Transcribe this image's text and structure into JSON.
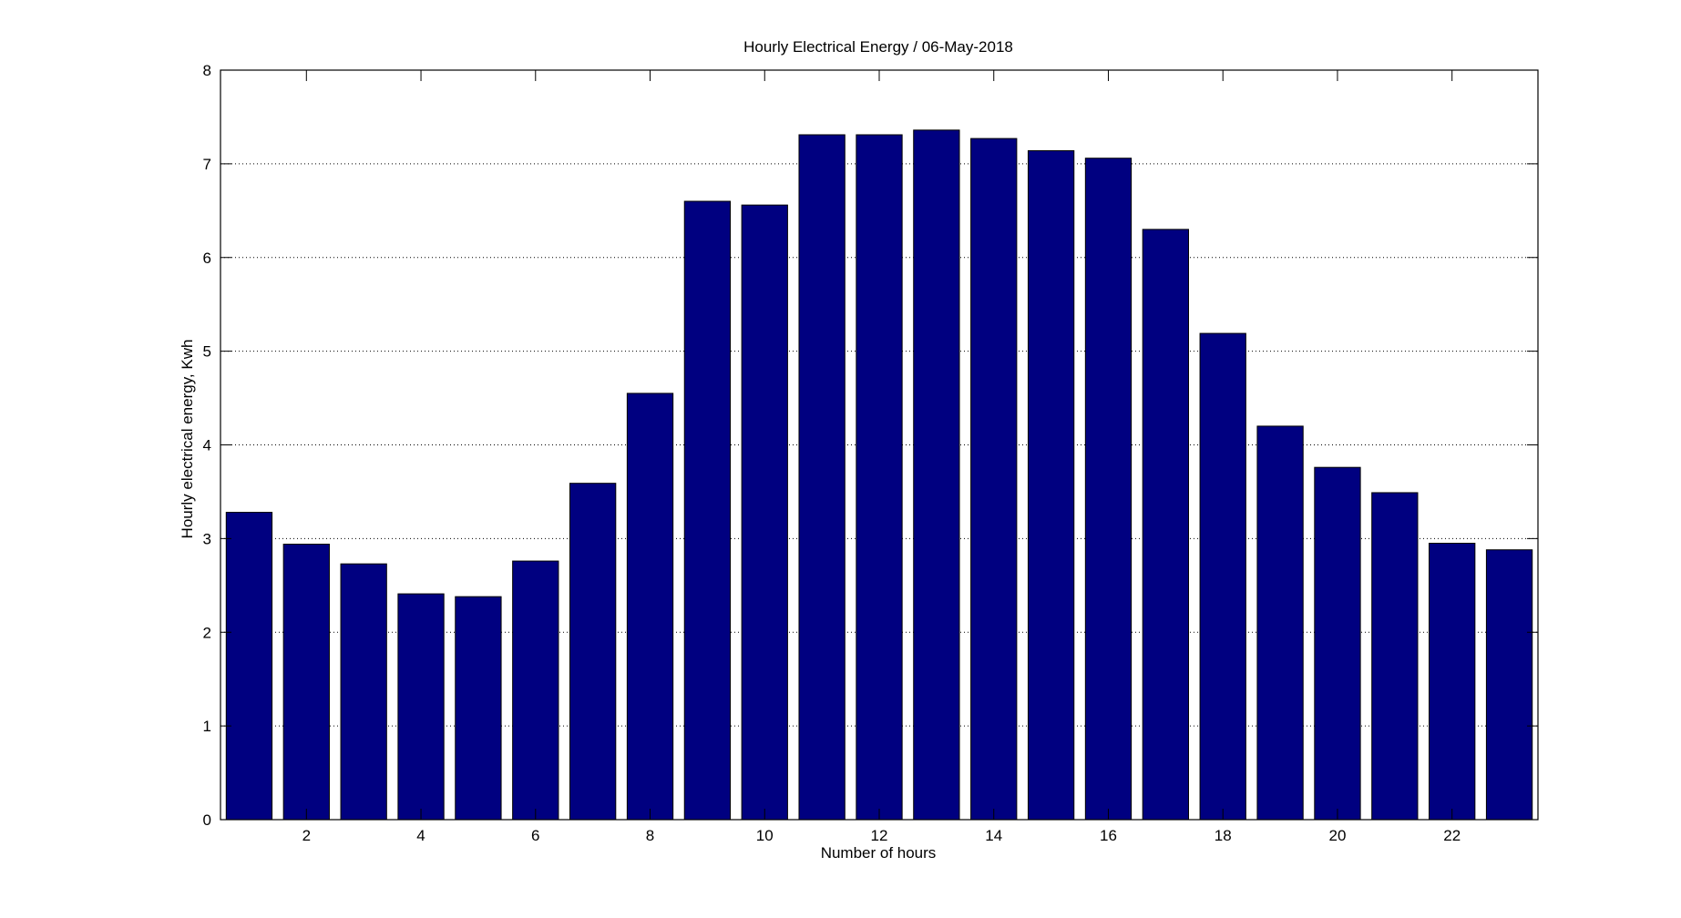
{
  "chart_data": {
    "type": "bar",
    "title": "Hourly Electrical Energy / 06-May-2018",
    "xlabel": "Number of hours",
    "ylabel": "Hourly electrical energy, Kwh",
    "x": [
      1,
      2,
      3,
      4,
      5,
      6,
      7,
      8,
      9,
      10,
      11,
      12,
      13,
      14,
      15,
      16,
      17,
      18,
      19,
      20,
      21,
      22,
      23
    ],
    "values": [
      3.28,
      2.94,
      2.73,
      2.41,
      2.38,
      2.76,
      3.59,
      4.55,
      6.6,
      6.56,
      7.31,
      7.31,
      7.36,
      7.27,
      7.14,
      7.06,
      6.3,
      5.19,
      4.2,
      3.76,
      3.49,
      2.95,
      2.88
    ],
    "xlim": [
      0.5,
      23.5
    ],
    "ylim": [
      0,
      8
    ],
    "xticks": [
      "2",
      "4",
      "6",
      "8",
      "10",
      "12",
      "14",
      "16",
      "18",
      "20",
      "22"
    ],
    "yticks": [
      "0",
      "1",
      "2",
      "3",
      "4",
      "5",
      "6",
      "7",
      "8"
    ],
    "grid": "horizontal-dotted",
    "bar_color": "#000080"
  }
}
